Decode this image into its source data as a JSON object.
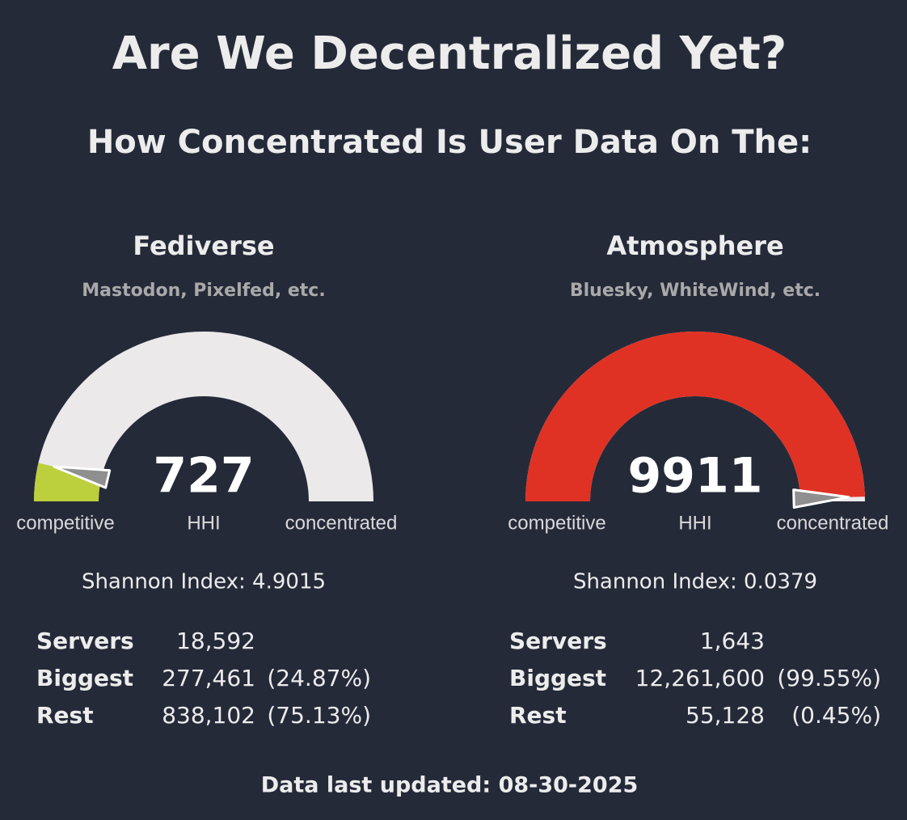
{
  "header": {
    "title": "Are We Decentralized Yet?",
    "subtitle": "How Concentrated Is User Data On The:"
  },
  "panels": [
    {
      "name": "Fediverse",
      "examples": "Mastodon, Pixelfed, etc.",
      "gauge": {
        "value": 727,
        "range": [
          0,
          10000
        ],
        "color": "#bccf3d",
        "track_color": "#ebe9ea",
        "metric": "HHI",
        "low_label": "competitive",
        "high_label": "concentrated"
      },
      "shannon": "Shannon Index: 4.9015",
      "stats": [
        {
          "label": "Servers",
          "value": "18,592"
        },
        {
          "label": "Biggest",
          "value": "277,461",
          "share": "(24.87%)"
        },
        {
          "label": "Rest",
          "value": "838,102",
          "share": "(75.13%)"
        }
      ]
    },
    {
      "name": "Atmosphere",
      "examples": "Bluesky, WhiteWind, etc.",
      "gauge": {
        "value": 9911,
        "range": [
          0,
          10000
        ],
        "color": "#e03224",
        "track_color": "#ebe9ea",
        "metric": "HHI",
        "low_label": "competitive",
        "high_label": "concentrated"
      },
      "shannon": "Shannon Index: 0.0379",
      "stats": [
        {
          "label": "Servers",
          "value": "1,643"
        },
        {
          "label": "Biggest",
          "value": "12,261,600",
          "share": "(99.55%)"
        },
        {
          "label": "Rest",
          "value": "55,128",
          "share": "(0.45%)"
        }
      ]
    }
  ],
  "footer": "Data last updated: 08-30-2025"
}
